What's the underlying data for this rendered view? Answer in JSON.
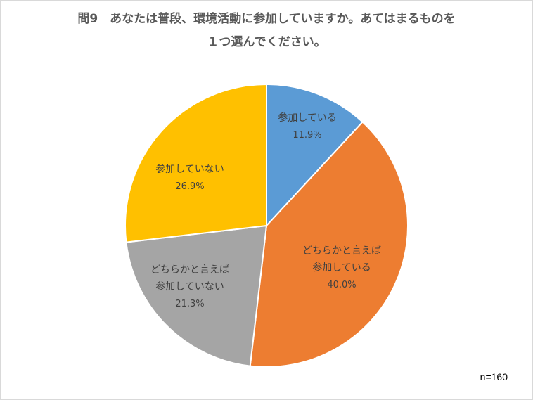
{
  "chart_data": {
    "type": "pie",
    "title_lines": [
      "問9　あなたは普段、環境活動に参加していますか。あてはまるものを",
      "１つ選んでください。"
    ],
    "slices": [
      {
        "label_lines": [
          "参加している"
        ],
        "value": 11.9,
        "value_label": "11.9%",
        "color": "#5b9bd5"
      },
      {
        "label_lines": [
          "どちらかと言えば",
          "参加している"
        ],
        "value": 40.0,
        "value_label": "40.0%",
        "color": "#ed7d31"
      },
      {
        "label_lines": [
          "どちらかと言えば",
          "参加していない"
        ],
        "value": 21.3,
        "value_label": "21.3%",
        "color": "#a5a5a5"
      },
      {
        "label_lines": [
          "参加していない"
        ],
        "value": 26.9,
        "value_label": "26.9%",
        "color": "#ffc000"
      }
    ],
    "start_angle": "12 o'clock",
    "direction": "clockwise",
    "legend": "none",
    "note": "n=160"
  }
}
